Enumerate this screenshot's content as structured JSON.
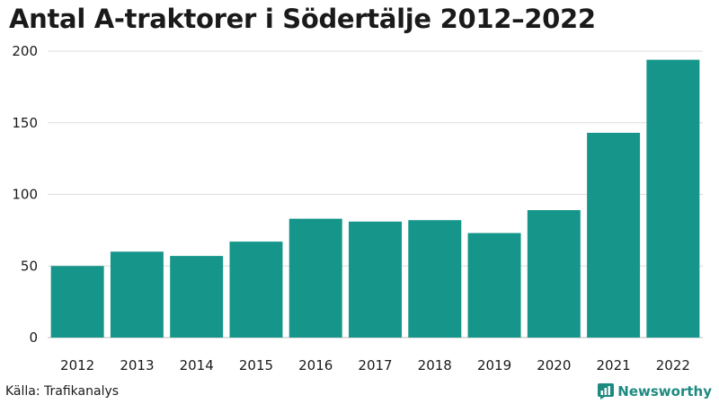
{
  "title": "Antal A-traktorer i Södertälje 2012–2022",
  "source": "Källa: Trafikanalys",
  "brand": {
    "name": "Newsworthy",
    "icon": "newsworthy-logo-icon",
    "color": "#1d8a80"
  },
  "chart_data": {
    "type": "bar",
    "categories": [
      "2012",
      "2013",
      "2014",
      "2015",
      "2016",
      "2017",
      "2018",
      "2019",
      "2020",
      "2021",
      "2022"
    ],
    "values": [
      50,
      60,
      57,
      67,
      83,
      81,
      82,
      73,
      89,
      143,
      194
    ],
    "ylim": [
      0,
      200
    ],
    "yticks": [
      "0",
      "50",
      "100",
      "150",
      "200"
    ],
    "grid": true,
    "bar_color": "#16968a"
  }
}
